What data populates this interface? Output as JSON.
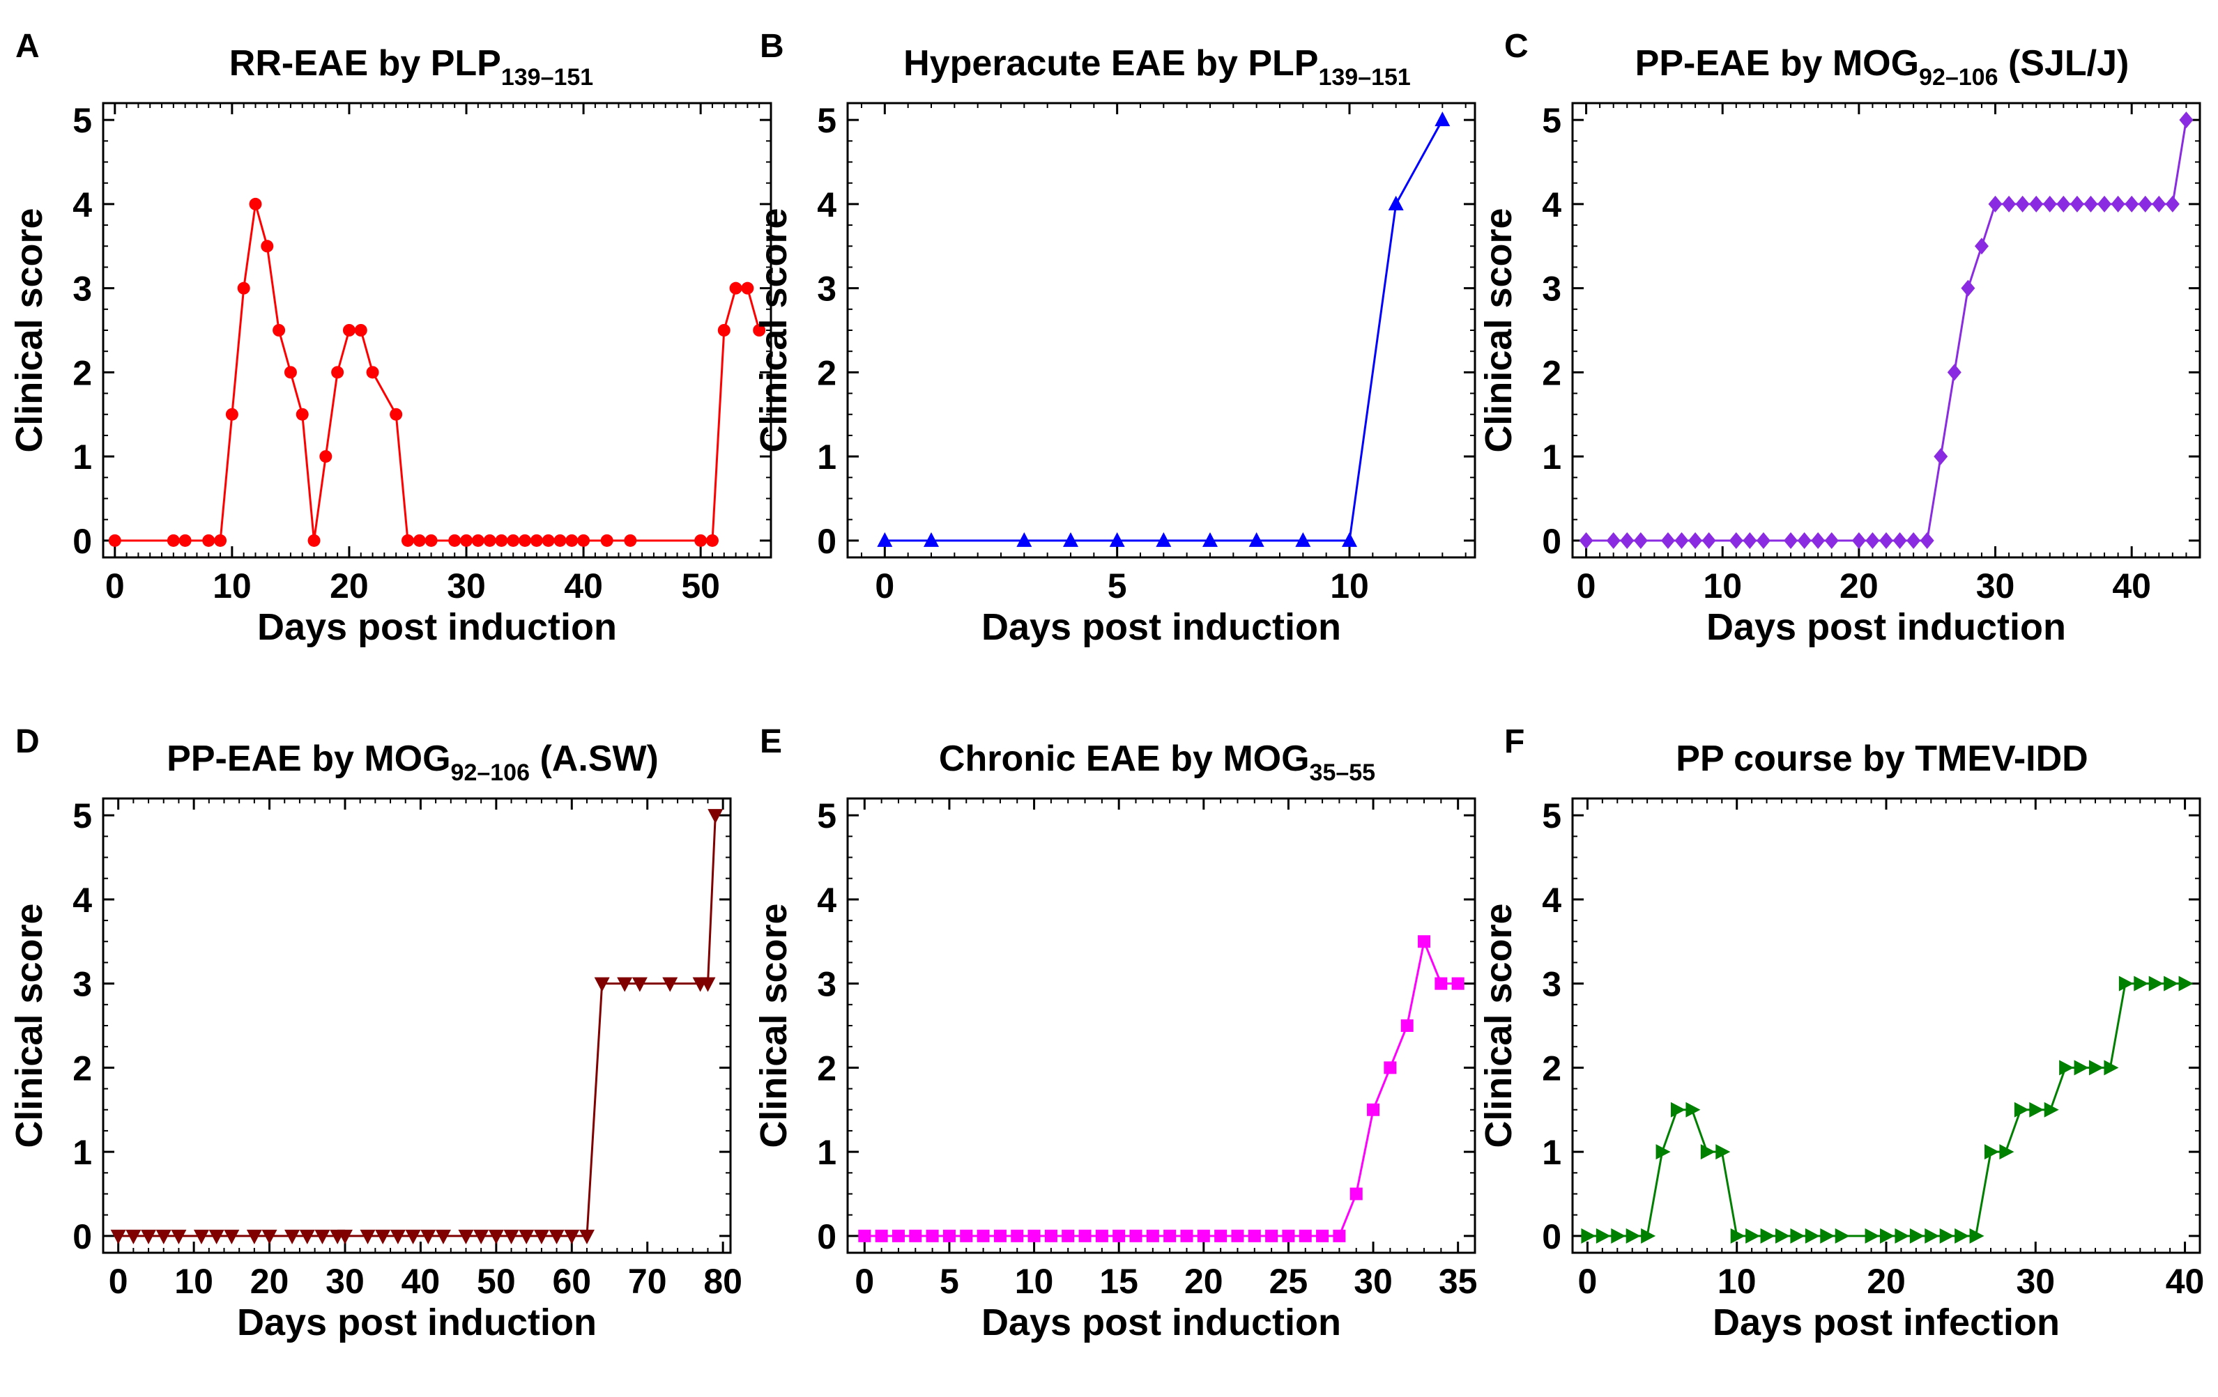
{
  "figure": {
    "ylabel": "Clinical score"
  },
  "chart_data": [
    {
      "letter": "A",
      "type": "line",
      "title_main": "RR-EAE by PLP",
      "title_sub": "139–151",
      "title_tail": "",
      "xlabel": "Days post induction",
      "ylabel": "Clinical score",
      "xlim": [
        -1,
        56
      ],
      "ylim": [
        -0.2,
        5.2
      ],
      "xticks": [
        0,
        10,
        20,
        30,
        40,
        50
      ],
      "yticks": [
        0,
        1,
        2,
        3,
        4,
        5
      ],
      "marker": "circle",
      "color": "#ff0000",
      "x": [
        0,
        5,
        6,
        8,
        9,
        10,
        11,
        12,
        13,
        14,
        15,
        16,
        17,
        18,
        19,
        20,
        21,
        22,
        24,
        25,
        26,
        27,
        29,
        30,
        31,
        32,
        33,
        34,
        35,
        36,
        37,
        38,
        39,
        40,
        42,
        44,
        50,
        51,
        52,
        53,
        54,
        55
      ],
      "y": [
        0,
        0,
        0,
        0,
        0,
        1.5,
        3,
        4,
        3.5,
        2.5,
        2,
        1.5,
        0,
        1,
        2,
        2.5,
        2.5,
        2,
        1.5,
        0,
        0,
        0,
        0,
        0,
        0,
        0,
        0,
        0,
        0,
        0,
        0,
        0,
        0,
        0,
        0,
        0,
        0,
        0,
        2.5,
        3,
        3,
        2.5
      ]
    },
    {
      "letter": "B",
      "type": "line",
      "title_main": "Hyperacute EAE by PLP",
      "title_sub": "139–151",
      "title_tail": "",
      "xlabel": "Days post induction",
      "ylabel": "Clinical score",
      "xlim": [
        -0.8,
        12.7
      ],
      "ylim": [
        -0.2,
        5.2
      ],
      "xticks": [
        0,
        5,
        10
      ],
      "yticks": [
        0,
        1,
        2,
        3,
        4,
        5
      ],
      "marker": "triangle-up",
      "color": "#0000ff",
      "x": [
        0,
        1,
        3,
        4,
        5,
        6,
        7,
        8,
        9,
        10,
        11,
        12
      ],
      "y": [
        0,
        0,
        0,
        0,
        0,
        0,
        0,
        0,
        0,
        0,
        4,
        5
      ]
    },
    {
      "letter": "C",
      "type": "line",
      "title_main": "PP-EAE by MOG",
      "title_sub": "92–106",
      "title_tail": " (SJL/J)",
      "xlabel": "Days post induction",
      "ylabel": "Clinical score",
      "xlim": [
        -1,
        45
      ],
      "ylim": [
        -0.2,
        5.2
      ],
      "xticks": [
        0,
        10,
        20,
        30,
        40
      ],
      "yticks": [
        0,
        1,
        2,
        3,
        4,
        5
      ],
      "marker": "diamond",
      "color": "#8a2be2",
      "x": [
        0,
        2,
        3,
        4,
        6,
        7,
        8,
        9,
        11,
        12,
        13,
        15,
        16,
        17,
        18,
        20,
        21,
        22,
        23,
        24,
        25,
        26,
        27,
        28,
        29,
        30,
        31,
        32,
        33,
        34,
        35,
        36,
        37,
        38,
        39,
        40,
        41,
        42,
        43,
        44
      ],
      "y": [
        0,
        0,
        0,
        0,
        0,
        0,
        0,
        0,
        0,
        0,
        0,
        0,
        0,
        0,
        0,
        0,
        0,
        0,
        0,
        0,
        0,
        1,
        2,
        3,
        3.5,
        4,
        4,
        4,
        4,
        4,
        4,
        4,
        4,
        4,
        4,
        4,
        4,
        4,
        4,
        5
      ]
    },
    {
      "letter": "D",
      "type": "line",
      "title_main": "PP-EAE by MOG",
      "title_sub": "92–106",
      "title_tail": " (A.SW)",
      "xlabel": "Days post induction",
      "ylabel": "Clinical score",
      "xlim": [
        -2,
        81
      ],
      "ylim": [
        -0.2,
        5.2
      ],
      "xticks": [
        0,
        10,
        20,
        30,
        40,
        50,
        60,
        70,
        80
      ],
      "yticks": [
        0,
        1,
        2,
        3,
        4,
        5
      ],
      "marker": "triangle-down",
      "color": "#800000",
      "x": [
        0,
        2,
        4,
        6,
        8,
        11,
        13,
        15,
        18,
        20,
        23,
        25,
        27,
        29,
        30,
        33,
        35,
        37,
        39,
        41,
        43,
        46,
        48,
        50,
        52,
        54,
        56,
        58,
        60,
        62,
        64,
        67,
        69,
        73,
        77,
        78,
        79
      ],
      "y": [
        0,
        0,
        0,
        0,
        0,
        0,
        0,
        0,
        0,
        0,
        0,
        0,
        0,
        0,
        0,
        0,
        0,
        0,
        0,
        0,
        0,
        0,
        0,
        0,
        0,
        0,
        0,
        0,
        0,
        0,
        3,
        3,
        3,
        3,
        3,
        3,
        5
      ]
    },
    {
      "letter": "E",
      "type": "line",
      "title_main": "Chronic EAE by MOG",
      "title_sub": "35–55",
      "title_tail": "",
      "xlabel": "Days post induction",
      "ylabel": "Clinical score",
      "xlim": [
        -1,
        36
      ],
      "ylim": [
        -0.2,
        5.2
      ],
      "xticks": [
        0,
        5,
        10,
        15,
        20,
        25,
        30,
        35
      ],
      "yticks": [
        0,
        1,
        2,
        3,
        4,
        5
      ],
      "marker": "square",
      "color": "#ff00ff",
      "x": [
        0,
        1,
        2,
        3,
        4,
        5,
        6,
        7,
        8,
        9,
        10,
        11,
        12,
        13,
        14,
        15,
        16,
        17,
        18,
        19,
        20,
        21,
        22,
        23,
        24,
        25,
        26,
        27,
        28,
        29,
        30,
        31,
        32,
        33,
        34,
        35
      ],
      "y": [
        0,
        0,
        0,
        0,
        0,
        0,
        0,
        0,
        0,
        0,
        0,
        0,
        0,
        0,
        0,
        0,
        0,
        0,
        0,
        0,
        0,
        0,
        0,
        0,
        0,
        0,
        0,
        0,
        0,
        0.5,
        1.5,
        2,
        2.5,
        3.5,
        3,
        3
      ]
    },
    {
      "letter": "F",
      "type": "line",
      "title_main": "PP course by TMEV-IDD",
      "title_sub": "",
      "title_tail": "",
      "xlabel": "Days post infection",
      "ylabel": "Clinical score",
      "xlim": [
        -1,
        41
      ],
      "ylim": [
        -0.2,
        5.2
      ],
      "xticks": [
        0,
        10,
        20,
        30,
        40
      ],
      "yticks": [
        0,
        1,
        2,
        3,
        4,
        5
      ],
      "marker": "triangle-right",
      "color": "#008000",
      "x": [
        0,
        1,
        2,
        3,
        4,
        5,
        6,
        7,
        8,
        9,
        10,
        11,
        12,
        13,
        14,
        15,
        16,
        17,
        19,
        20,
        21,
        22,
        23,
        24,
        25,
        26,
        27,
        28,
        29,
        30,
        31,
        32,
        33,
        34,
        35,
        36,
        37,
        38,
        39,
        40
      ],
      "y": [
        0,
        0,
        0,
        0,
        0,
        1,
        1.5,
        1.5,
        1,
        1,
        0,
        0,
        0,
        0,
        0,
        0,
        0,
        0,
        0,
        0,
        0,
        0,
        0,
        0,
        0,
        0,
        1,
        1,
        1.5,
        1.5,
        1.5,
        2,
        2,
        2,
        2,
        3,
        3,
        3,
        3,
        3
      ]
    }
  ]
}
